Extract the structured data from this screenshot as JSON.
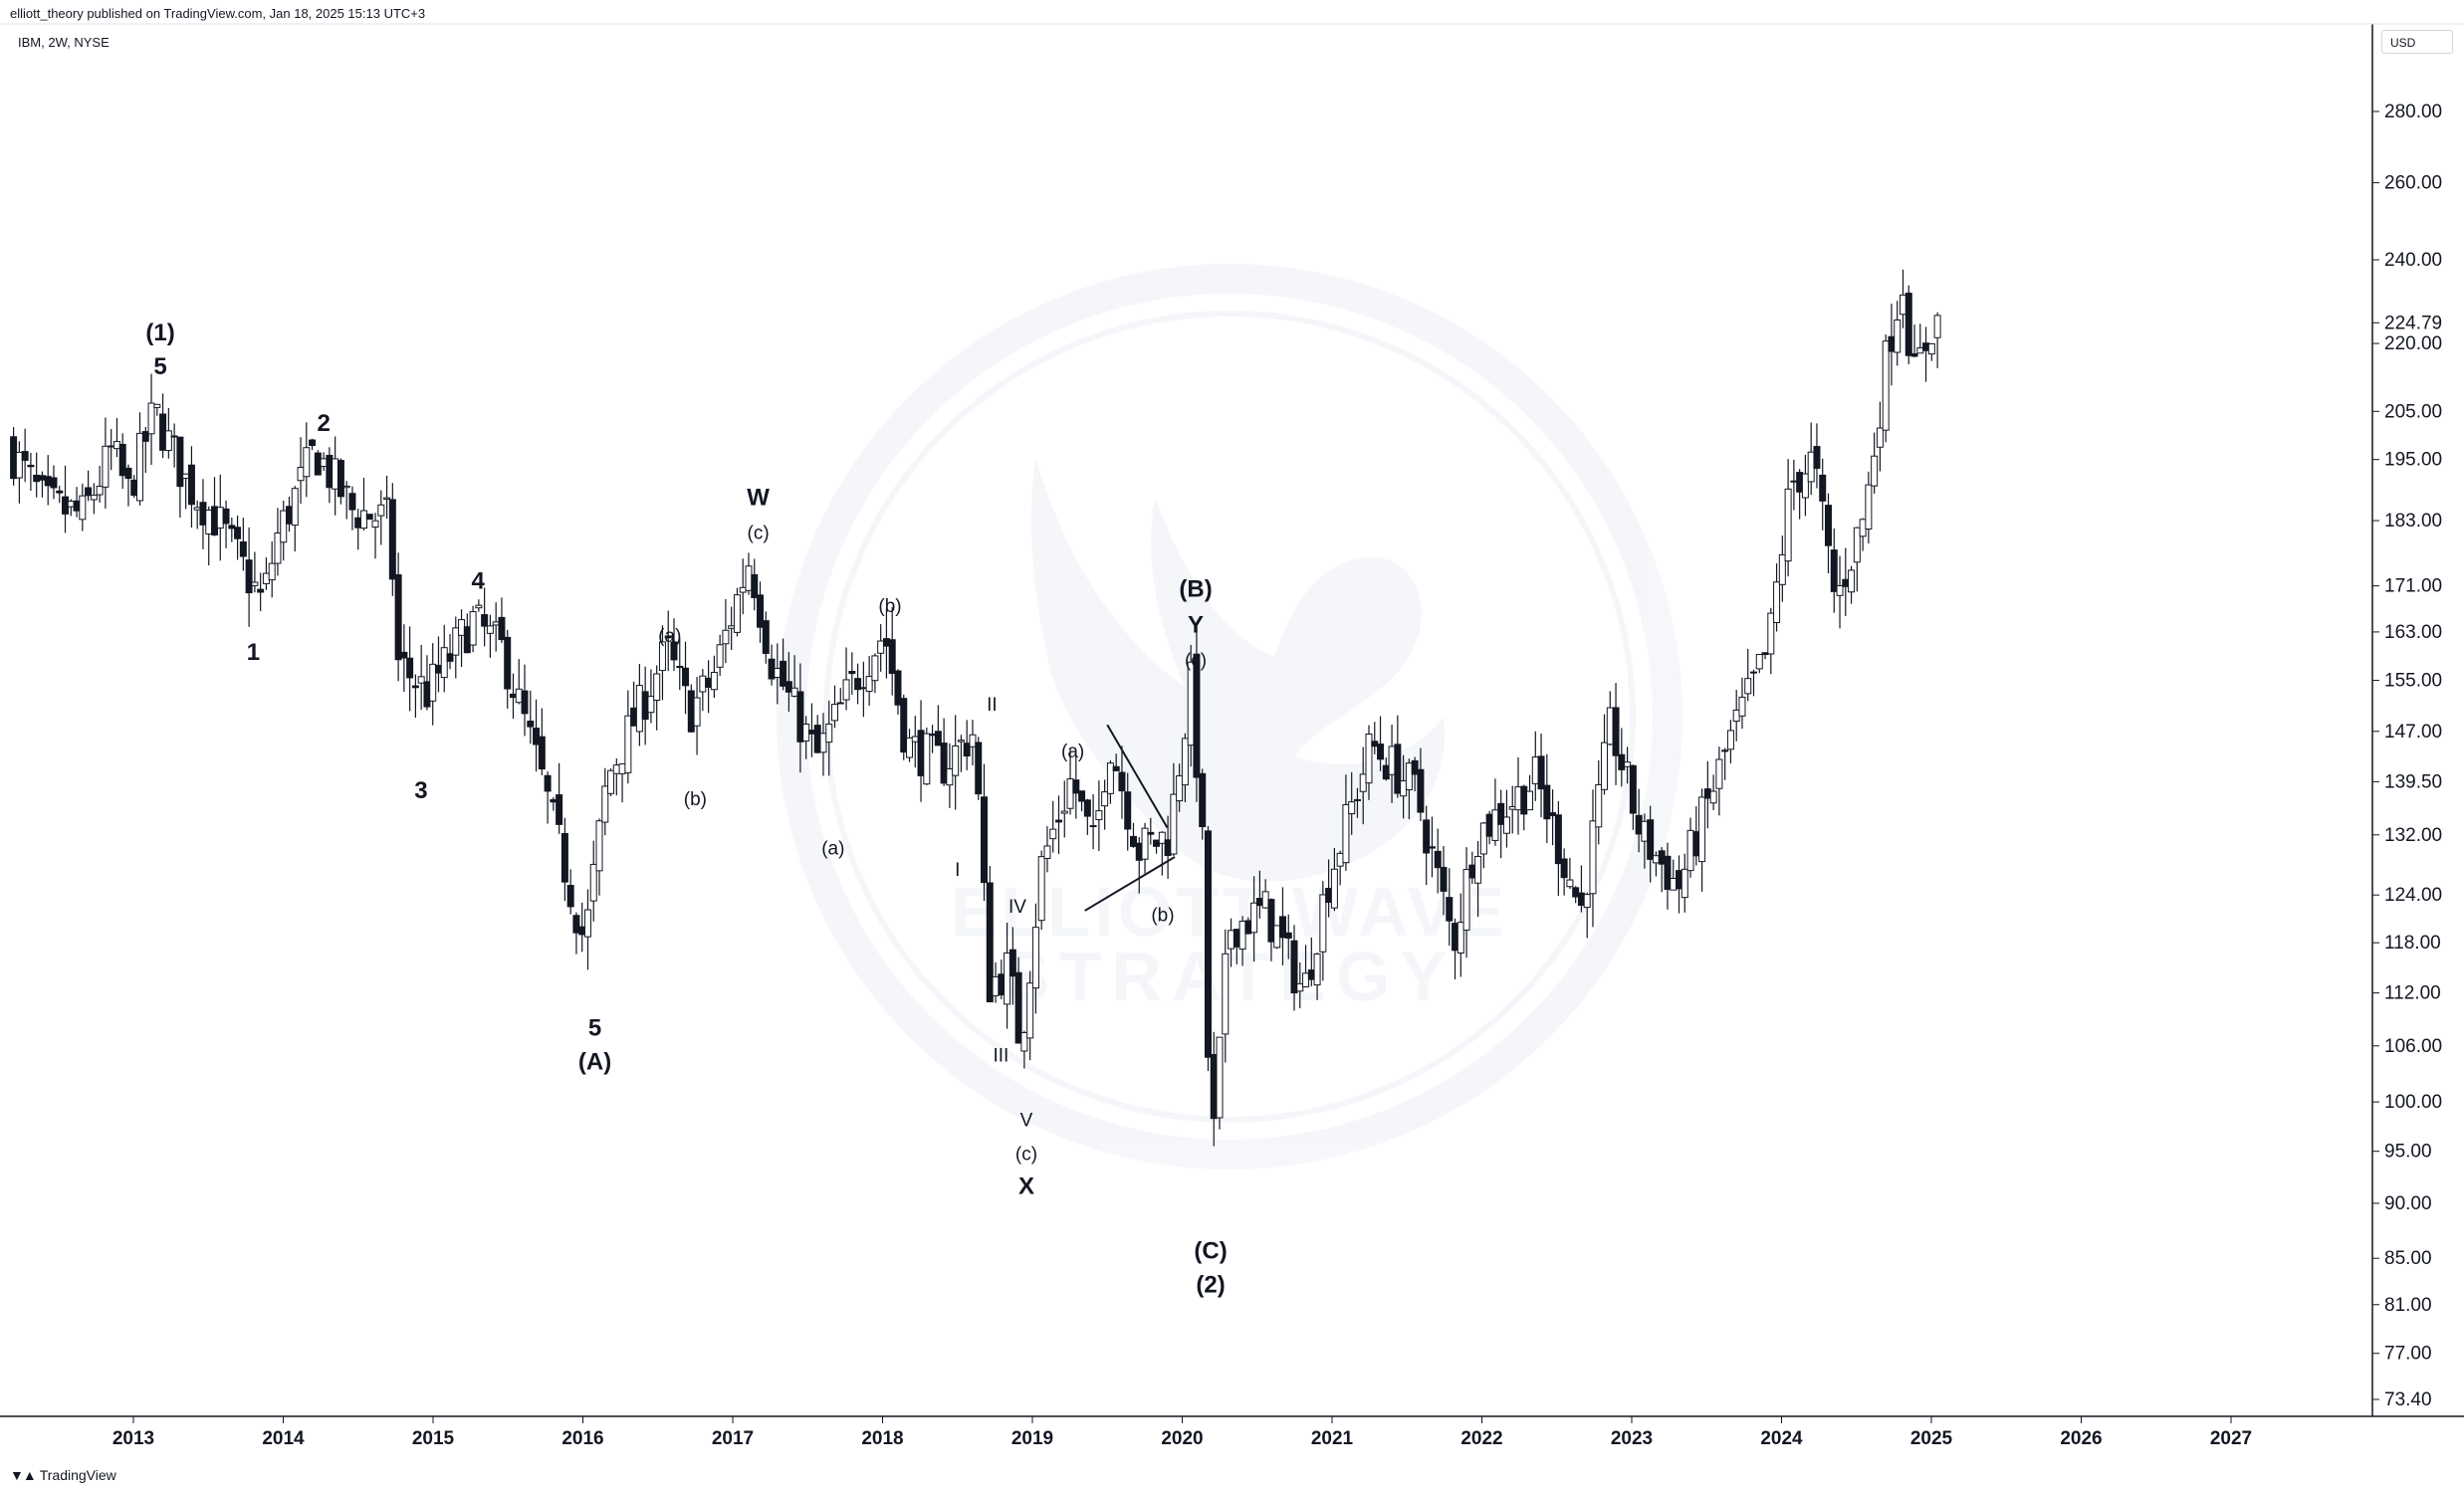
{
  "header": {
    "publisher": "elliott_theory published on TradingView.com, Jan 18, 2025 15:13 UTC+3",
    "symbol": "IBM, 2W, NYSE",
    "currency": "USD"
  },
  "footer": {
    "logo_icon": "tradingview-logo-icon",
    "brand": "TradingView"
  },
  "watermark": {
    "line1": "ELLIOTT WAVE",
    "line2": "STRATEGY",
    "icon": "phoenix-icon"
  },
  "chart_data": {
    "type": "candlestick",
    "title": "",
    "xlabel": "",
    "ylabel": "",
    "y_scale": "log",
    "ylim": [
      70,
      300
    ],
    "xlim": [
      2012.2,
      2028.0
    ],
    "grid": false,
    "y_ticks": [
      280,
      260,
      240,
      224.79,
      220,
      205,
      195,
      183,
      171,
      163,
      155,
      147,
      139.5,
      132,
      124,
      118,
      112,
      106,
      100,
      95,
      90,
      85,
      81,
      77,
      73.4
    ],
    "y_tick_labels": [
      "280.00",
      "260.00",
      "240.00",
      "224.79",
      "220.00",
      "205.00",
      "195.00",
      "183.00",
      "171.00",
      "163.00",
      "155.00",
      "147.00",
      "139.50",
      "132.00",
      "124.00",
      "118.00",
      "112.00",
      "106.00",
      "100.00",
      "95.00",
      "90.00",
      "85.00",
      "81.00",
      "77.00",
      "73.40"
    ],
    "current_price": 224.79,
    "x_ticks": [
      "2013",
      "2014",
      "2015",
      "2016",
      "2017",
      "2018",
      "2019",
      "2020",
      "2021",
      "2022",
      "2023",
      "2024",
      "2025",
      "2026",
      "2027"
    ],
    "price_path": [
      {
        "t": 2012.2,
        "p": 198
      },
      {
        "t": 2012.45,
        "p": 186
      },
      {
        "t": 2012.7,
        "p": 184
      },
      {
        "t": 2012.9,
        "p": 197
      },
      {
        "t": 2013.0,
        "p": 188
      },
      {
        "t": 2013.18,
        "p": 205
      },
      {
        "t": 2013.4,
        "p": 190
      },
      {
        "t": 2013.6,
        "p": 183
      },
      {
        "t": 2013.9,
        "p": 168
      },
      {
        "t": 2014.0,
        "p": 180
      },
      {
        "t": 2014.25,
        "p": 197
      },
      {
        "t": 2014.5,
        "p": 185
      },
      {
        "t": 2014.75,
        "p": 183
      },
      {
        "t": 2014.8,
        "p": 158
      },
      {
        "t": 2015.0,
        "p": 153
      },
      {
        "t": 2015.3,
        "p": 165
      },
      {
        "t": 2015.5,
        "p": 160
      },
      {
        "t": 2015.75,
        "p": 141
      },
      {
        "t": 2016.05,
        "p": 118
      },
      {
        "t": 2016.2,
        "p": 140
      },
      {
        "t": 2016.6,
        "p": 160
      },
      {
        "t": 2016.75,
        "p": 150
      },
      {
        "t": 2016.9,
        "p": 155
      },
      {
        "t": 2017.15,
        "p": 176
      },
      {
        "t": 2017.3,
        "p": 158
      },
      {
        "t": 2017.6,
        "p": 143
      },
      {
        "t": 2017.85,
        "p": 155
      },
      {
        "t": 2018.05,
        "p": 163
      },
      {
        "t": 2018.2,
        "p": 145
      },
      {
        "t": 2018.45,
        "p": 142
      },
      {
        "t": 2018.65,
        "p": 147
      },
      {
        "t": 2018.75,
        "p": 113
      },
      {
        "t": 2018.88,
        "p": 115
      },
      {
        "t": 2018.96,
        "p": 106
      },
      {
        "t": 2019.1,
        "p": 128
      },
      {
        "t": 2019.3,
        "p": 140
      },
      {
        "t": 2019.45,
        "p": 130
      },
      {
        "t": 2019.55,
        "p": 146
      },
      {
        "t": 2019.75,
        "p": 130
      },
      {
        "t": 2019.95,
        "p": 132
      },
      {
        "t": 2020.1,
        "p": 155
      },
      {
        "t": 2020.18,
        "p": 128
      },
      {
        "t": 2020.23,
        "p": 93
      },
      {
        "t": 2020.35,
        "p": 120
      },
      {
        "t": 2020.6,
        "p": 122
      },
      {
        "t": 2020.85,
        "p": 112
      },
      {
        "t": 2021.0,
        "p": 125
      },
      {
        "t": 2021.3,
        "p": 145
      },
      {
        "t": 2021.6,
        "p": 138
      },
      {
        "t": 2021.85,
        "p": 118
      },
      {
        "t": 2022.0,
        "p": 132
      },
      {
        "t": 2022.4,
        "p": 140
      },
      {
        "t": 2022.7,
        "p": 122
      },
      {
        "t": 2022.9,
        "p": 148
      },
      {
        "t": 2023.1,
        "p": 132
      },
      {
        "t": 2023.35,
        "p": 125
      },
      {
        "t": 2023.7,
        "p": 146
      },
      {
        "t": 2023.95,
        "p": 160
      },
      {
        "t": 2024.1,
        "p": 190
      },
      {
        "t": 2024.25,
        "p": 195
      },
      {
        "t": 2024.4,
        "p": 168
      },
      {
        "t": 2024.6,
        "p": 185
      },
      {
        "t": 2024.75,
        "p": 220
      },
      {
        "t": 2024.85,
        "p": 235
      },
      {
        "t": 2024.92,
        "p": 212
      },
      {
        "t": 2025.05,
        "p": 225
      }
    ],
    "wave_labels": [
      {
        "text": "(1)",
        "t": 2013.18,
        "p": 210,
        "pos": "above2",
        "weight": "bold"
      },
      {
        "text": "5",
        "t": 2013.18,
        "p": 210,
        "pos": "above",
        "weight": "bold"
      },
      {
        "text": "1",
        "t": 2013.8,
        "p": 164,
        "pos": "below",
        "weight": "bold"
      },
      {
        "text": "2",
        "t": 2014.27,
        "p": 198,
        "pos": "above",
        "weight": "bold"
      },
      {
        "text": "3",
        "t": 2014.92,
        "p": 142,
        "pos": "below",
        "weight": "bold"
      },
      {
        "text": "4",
        "t": 2015.3,
        "p": 168,
        "pos": "above",
        "weight": "bold"
      },
      {
        "text": "5",
        "t": 2016.08,
        "p": 111,
        "pos": "below",
        "weight": "bold"
      },
      {
        "text": "(A)",
        "t": 2016.08,
        "p": 111,
        "pos": "below2",
        "weight": "bold"
      },
      {
        "text": "(a)",
        "t": 2016.58,
        "p": 159,
        "pos": "above",
        "weight": "normal"
      },
      {
        "text": "(b)",
        "t": 2016.75,
        "p": 141,
        "pos": "below",
        "weight": "normal"
      },
      {
        "text": "(c)",
        "t": 2017.17,
        "p": 177,
        "pos": "above",
        "weight": "normal"
      },
      {
        "text": "W",
        "t": 2017.17,
        "p": 177,
        "pos": "above2",
        "weight": "bold"
      },
      {
        "text": "(a)",
        "t": 2017.67,
        "p": 134,
        "pos": "below",
        "weight": "normal"
      },
      {
        "text": "(b)",
        "t": 2018.05,
        "p": 164,
        "pos": "above",
        "weight": "normal"
      },
      {
        "text": "I",
        "t": 2018.5,
        "p": 131,
        "pos": "below",
        "weight": "normal"
      },
      {
        "text": "II",
        "t": 2018.73,
        "p": 148,
        "pos": "above",
        "weight": "normal"
      },
      {
        "text": "III",
        "t": 2018.79,
        "p": 108,
        "pos": "below",
        "weight": "normal"
      },
      {
        "text": "IV",
        "t": 2018.9,
        "p": 120,
        "pos": "above",
        "weight": "normal"
      },
      {
        "text": "V",
        "t": 2018.96,
        "p": 101,
        "pos": "below",
        "weight": "normal"
      },
      {
        "text": "(c)",
        "t": 2018.96,
        "p": 101,
        "pos": "below2",
        "weight": "normal"
      },
      {
        "text": "X",
        "t": 2018.96,
        "p": 101,
        "pos": "below3",
        "weight": "bold"
      },
      {
        "text": "(a)",
        "t": 2019.27,
        "p": 141,
        "pos": "above",
        "weight": "normal"
      },
      {
        "text": "(b)",
        "t": 2019.87,
        "p": 125,
        "pos": "below",
        "weight": "normal"
      },
      {
        "text": "(c)",
        "t": 2020.09,
        "p": 155,
        "pos": "above",
        "weight": "normal"
      },
      {
        "text": "Y",
        "t": 2020.09,
        "p": 155,
        "pos": "above2",
        "weight": "bold"
      },
      {
        "text": "(B)",
        "t": 2020.09,
        "p": 155,
        "pos": "above3",
        "weight": "bold"
      },
      {
        "text": "(C)",
        "t": 2020.19,
        "p": 88,
        "pos": "below",
        "weight": "bold"
      },
      {
        "text": "(2)",
        "t": 2020.19,
        "p": 88,
        "pos": "below2",
        "weight": "bold"
      }
    ],
    "trendlines": [
      {
        "from": {
          "t": 2019.5,
          "p": 148
        },
        "to": {
          "t": 2019.9,
          "p": 133
        }
      },
      {
        "from": {
          "t": 2019.35,
          "p": 122
        },
        "to": {
          "t": 2019.95,
          "p": 129
        }
      }
    ]
  }
}
